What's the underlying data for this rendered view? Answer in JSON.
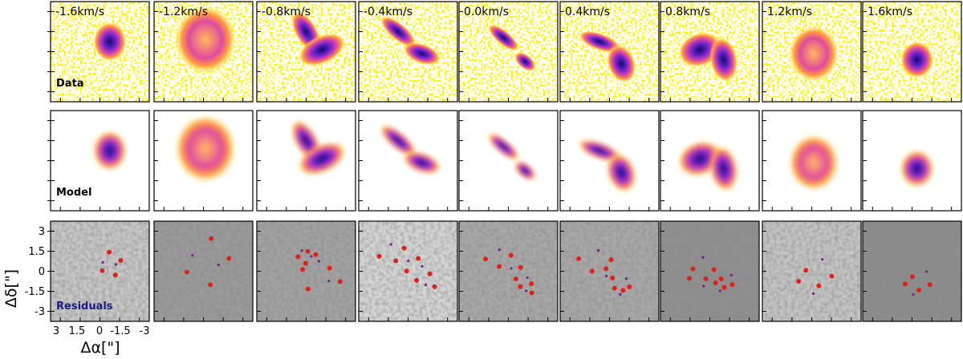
{
  "velocities": [
    "-1.6km/s",
    "-1.2km/s",
    "-0.8km/s",
    "-0.4km/s",
    "0.0km/s",
    "0.4km/s",
    "0.8km/s",
    "1.2km/s",
    "1.6km/s"
  ],
  "rows": {
    "data": "Data",
    "model": "Model",
    "residuals": "Residuals"
  },
  "colors": {
    "residuals_label": "#1a1a8a",
    "positive_residual": "#e0201a",
    "negative_residual": "#7a1f8a"
  },
  "axes": {
    "x_label": "Δα[\"]",
    "y_label": "Δδ[\"]",
    "x_ticks": [
      "3",
      "1.5",
      "0",
      "-1.5",
      "-3"
    ],
    "y_ticks": [
      "3",
      "1.5",
      "0",
      "-1.5",
      "-3"
    ]
  }
}
